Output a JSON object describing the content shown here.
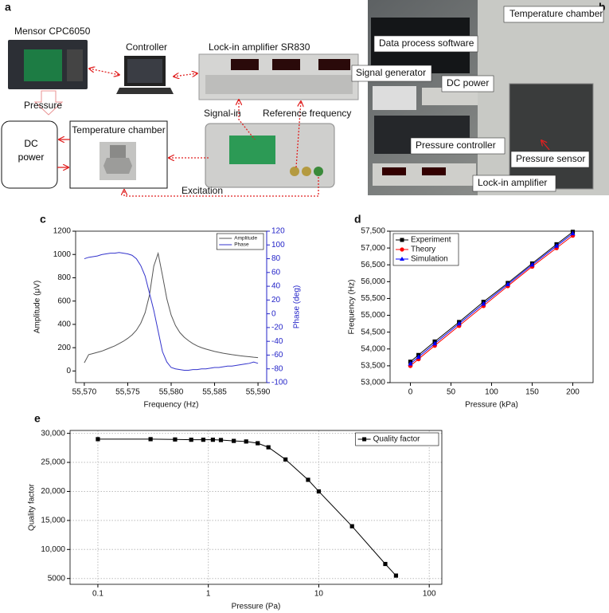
{
  "diagram_a": {
    "panel": "a",
    "labels": {
      "mensor": "Mensor CPC6050",
      "controller": "Controller",
      "lockin": "Lock-in amplifier SR830",
      "pressure": "Pressure",
      "dc": "DC power",
      "chamber": "Temperature chamber",
      "signal_in": "Signal-in",
      "reference": "Reference frequency",
      "excitation": "Excitation"
    }
  },
  "photo_b": {
    "panel": "b",
    "labels": {
      "chamber": "Temperature chamber",
      "software": "Data process software",
      "generator": "Signal generator",
      "dc": "DC power",
      "controller": "Pressure controller",
      "sensor": "Pressure sensor",
      "lockin": "Lock-in amplifier"
    }
  },
  "chart_data": [
    {
      "type": "line",
      "panel": "c",
      "xlabel": "Frequency (Hz)",
      "ylabel": "Amplitude (μV)",
      "y2label": "Phase (deg)",
      "y2color": "#2323c8",
      "legend": "upper right",
      "x": [
        55570,
        55570.5,
        55571,
        55571.5,
        55572,
        55572.5,
        55573,
        55573.5,
        55574,
        55574.5,
        55575,
        55575.5,
        55576,
        55576.5,
        55577,
        55577.5,
        55578,
        55578.5,
        55579,
        55579.5,
        55580,
        55580.5,
        55581,
        55581.5,
        55582,
        55582.5,
        55583,
        55583.5,
        55584,
        55584.5,
        55585,
        55585.5,
        55586,
        55586.5,
        55587,
        55587.5,
        55588,
        55588.5,
        55589,
        55589.5,
        55590
      ],
      "series": [
        {
          "name": "Amplitude",
          "color": "#555555",
          "values": [
            70,
            140,
            150,
            160,
            170,
            185,
            200,
            215,
            235,
            255,
            280,
            310,
            350,
            410,
            500,
            650,
            900,
            1010,
            820,
            620,
            480,
            390,
            330,
            290,
            260,
            235,
            215,
            200,
            188,
            178,
            168,
            160,
            152,
            146,
            140,
            135,
            130,
            126,
            122,
            118,
            115
          ]
        },
        {
          "name": "Phase",
          "color": "#3333cc",
          "axis": "y2",
          "values": [
            80,
            82,
            83,
            84,
            86,
            87,
            88,
            88,
            89,
            88,
            87,
            85,
            80,
            70,
            55,
            30,
            5,
            -25,
            -55,
            -70,
            -78,
            -80,
            -81,
            -82,
            -82,
            -81,
            -81,
            -80,
            -80,
            -79,
            -78,
            -78,
            -77,
            -76,
            -76,
            -75,
            -74,
            -73,
            -72,
            -70,
            -72
          ]
        }
      ],
      "xlim": [
        55569,
        55591
      ],
      "xticks": [
        {
          "value": 55570,
          "label": "55,570"
        },
        {
          "value": 55575,
          "label": "55,575"
        },
        {
          "value": 55580,
          "label": "55,580"
        },
        {
          "value": 55585,
          "label": "55,585"
        },
        {
          "value": 55590,
          "label": "55,590"
        }
      ],
      "ylim": [
        -100,
        1200
      ],
      "yticks": [
        0,
        200,
        400,
        600,
        800,
        1000,
        1200
      ],
      "y2lim": [
        -100,
        120
      ],
      "y2ticks": [
        -100,
        -80,
        -60,
        -40,
        -20,
        0,
        20,
        40,
        60,
        80,
        100,
        120
      ],
      "grid": false
    },
    {
      "type": "line",
      "panel": "d",
      "xlabel": "Pressure (kPa)",
      "ylabel": "Frequency (Hz)",
      "legend": "upper left",
      "x": [
        0,
        10,
        30,
        60,
        90,
        120,
        150,
        180,
        200
      ],
      "series": [
        {
          "name": "Experiment",
          "color": "#000000",
          "marker": "square",
          "values": [
            53620,
            53820,
            54220,
            54800,
            55400,
            55960,
            56540,
            57110,
            57480
          ]
        },
        {
          "name": "Theory",
          "color": "#ff0000",
          "marker": "circle",
          "values": [
            53500,
            53700,
            54100,
            54690,
            55280,
            55870,
            56450,
            57000,
            57370
          ]
        },
        {
          "name": "Simulation",
          "color": "#0000ff",
          "marker": "triangle",
          "values": [
            53560,
            53760,
            54160,
            54750,
            55340,
            55920,
            56500,
            57060,
            57430
          ]
        }
      ],
      "xlim": [
        -25,
        225
      ],
      "xticks": [
        0,
        50,
        100,
        150,
        200
      ],
      "ylim": [
        53000,
        57500
      ],
      "yticks": [
        {
          "value": 53000,
          "label": "53,000"
        },
        {
          "value": 53500,
          "label": "53,500"
        },
        {
          "value": 54000,
          "label": "54,000"
        },
        {
          "value": 54500,
          "label": "54,500"
        },
        {
          "value": 55000,
          "label": "55,000"
        },
        {
          "value": 55500,
          "label": "55,500"
        },
        {
          "value": 56000,
          "label": "56,000"
        },
        {
          "value": 56500,
          "label": "56,500"
        },
        {
          "value": 57000,
          "label": "57,000"
        },
        {
          "value": 57500,
          "label": "57,500"
        }
      ],
      "grid": false
    },
    {
      "type": "line",
      "panel": "e",
      "xlabel": "Pressure (Pa)",
      "ylabel": "Quality factor",
      "legend": "upper right",
      "xscale": "log",
      "x": [
        0.1,
        0.3,
        0.5,
        0.7,
        0.9,
        1.1,
        1.3,
        1.7,
        2.2,
        2.8,
        3.5,
        5,
        8,
        10,
        20,
        40,
        50
      ],
      "series": [
        {
          "name": "Quality factor",
          "color": "#000000",
          "marker": "square",
          "values": [
            29000,
            29000,
            28950,
            28900,
            28900,
            28900,
            28850,
            28700,
            28600,
            28300,
            27600,
            25500,
            22000,
            20000,
            14000,
            7500,
            5500
          ]
        }
      ],
      "xlim": [
        0.056,
        130
      ],
      "xticks": [
        0.1,
        1,
        10,
        100
      ],
      "ylim": [
        4000,
        30500
      ],
      "yticks": [
        5000,
        {
          "value": 10000,
          "label": "10,000"
        },
        {
          "value": 15000,
          "label": "15,000"
        },
        {
          "value": 20000,
          "label": "20,000"
        },
        {
          "value": 25000,
          "label": "25,000"
        },
        {
          "value": 30000,
          "label": "30,000"
        }
      ],
      "grid": true
    }
  ]
}
